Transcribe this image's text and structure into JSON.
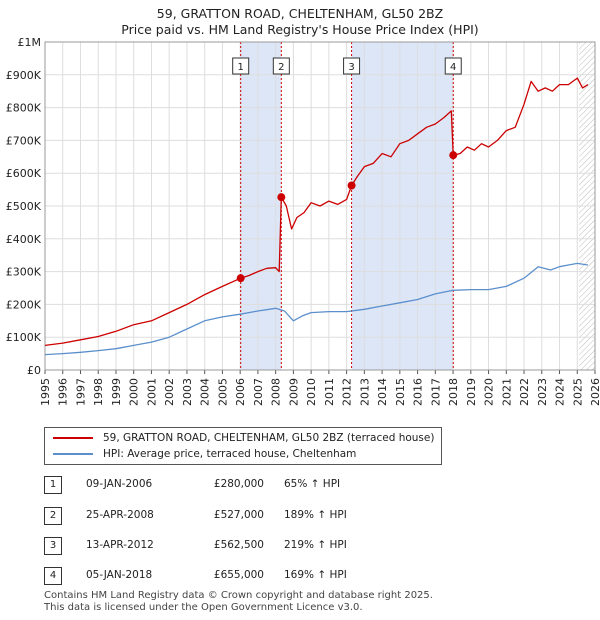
{
  "title": {
    "line1": "59, GRATTON ROAD, CHELTENHAM, GL50 2BZ",
    "line2": "Price paid vs. HM Land Registry's House Price Index (HPI)"
  },
  "colors": {
    "price_line": "#cc0000",
    "hpi_line": "#5b8fcc",
    "shade": "#dde6f7",
    "grid": "#dddddd",
    "vline": "#cc0000"
  },
  "chart_data": {
    "type": "line",
    "xlim": [
      1995,
      2026
    ],
    "ylim": [
      0,
      1000000
    ],
    "y_ticks": [
      {
        "value": 0,
        "label": "£0"
      },
      {
        "value": 100000,
        "label": "£100K"
      },
      {
        "value": 200000,
        "label": "£200K"
      },
      {
        "value": 300000,
        "label": "£300K"
      },
      {
        "value": 400000,
        "label": "£400K"
      },
      {
        "value": 500000,
        "label": "£500K"
      },
      {
        "value": 600000,
        "label": "£600K"
      },
      {
        "value": 700000,
        "label": "£700K"
      },
      {
        "value": 800000,
        "label": "£800K"
      },
      {
        "value": 900000,
        "label": "£900K"
      },
      {
        "value": 1000000,
        "label": "£1M"
      }
    ],
    "x_ticks": [
      "1995",
      "1996",
      "1997",
      "1998",
      "1999",
      "2000",
      "2001",
      "2002",
      "2003",
      "2004",
      "2005",
      "2006",
      "2007",
      "2008",
      "2009",
      "2010",
      "2011",
      "2012",
      "2013",
      "2014",
      "2015",
      "2016",
      "2017",
      "2018",
      "2019",
      "2020",
      "2021",
      "2022",
      "2023",
      "2024",
      "2025",
      "2026"
    ],
    "shaded_periods": [
      [
        2006.03,
        2008.32
      ],
      [
        2012.28,
        2018.01
      ]
    ],
    "hatched_from": 2025.1,
    "series": [
      {
        "name": "59, GRATTON ROAD, CHELTENHAM, GL50 2BZ (terraced house)",
        "x": [
          1995,
          1996,
          1997,
          1998,
          1999,
          2000,
          2001,
          2002,
          2003,
          2004,
          2005,
          2006.03,
          2006.5,
          2007,
          2007.5,
          2008,
          2008.2,
          2008.32,
          2008.6,
          2008.9,
          2009.2,
          2009.6,
          2010,
          2010.5,
          2011,
          2011.5,
          2012,
          2012.28,
          2012.6,
          2013,
          2013.5,
          2014,
          2014.5,
          2015,
          2015.5,
          2016,
          2016.5,
          2017,
          2017.5,
          2017.9,
          2018.01,
          2018.4,
          2018.8,
          2019.2,
          2019.6,
          2020,
          2020.5,
          2021,
          2021.5,
          2022,
          2022.4,
          2022.8,
          2023.2,
          2023.6,
          2024,
          2024.5,
          2025,
          2025.3,
          2025.6
        ],
        "values": [
          75000,
          82000,
          92000,
          102000,
          118000,
          138000,
          150000,
          175000,
          200000,
          230000,
          255000,
          280000,
          288000,
          300000,
          310000,
          312000,
          300000,
          527000,
          500000,
          430000,
          465000,
          480000,
          510000,
          500000,
          515000,
          505000,
          520000,
          562500,
          590000,
          620000,
          630000,
          660000,
          650000,
          690000,
          700000,
          720000,
          740000,
          750000,
          770000,
          790000,
          655000,
          660000,
          680000,
          670000,
          690000,
          680000,
          700000,
          730000,
          740000,
          810000,
          880000,
          850000,
          860000,
          850000,
          870000,
          870000,
          890000,
          860000,
          870000
        ]
      },
      {
        "name": "HPI: Average price, terraced house, Cheltenham",
        "x": [
          1995,
          1996,
          1997,
          1998,
          1999,
          2000,
          2001,
          2002,
          2003,
          2004,
          2005,
          2006,
          2007,
          2008,
          2008.5,
          2009,
          2009.5,
          2010,
          2011,
          2012,
          2013,
          2014,
          2015,
          2016,
          2017,
          2018,
          2019,
          2020,
          2021,
          2022,
          2022.8,
          2023.5,
          2024,
          2024.5,
          2025,
          2025.6
        ],
        "values": [
          47000,
          50000,
          54000,
          59000,
          65000,
          75000,
          85000,
          100000,
          125000,
          150000,
          162000,
          170000,
          180000,
          188000,
          180000,
          150000,
          165000,
          175000,
          178000,
          178000,
          185000,
          195000,
          205000,
          215000,
          232000,
          243000,
          245000,
          245000,
          255000,
          280000,
          315000,
          305000,
          315000,
          320000,
          325000,
          320000
        ]
      }
    ],
    "sales": [
      {
        "num": "1",
        "x": 2006.03,
        "price": 280000
      },
      {
        "num": "2",
        "x": 2008.32,
        "price": 527000
      },
      {
        "num": "3",
        "x": 2012.28,
        "price": 562500
      },
      {
        "num": "4",
        "x": 2018.01,
        "price": 655000
      }
    ]
  },
  "legend": {
    "price_label": "59, GRATTON ROAD, CHELTENHAM, GL50 2BZ (terraced house)",
    "hpi_label": "HPI: Average price, terraced house, Cheltenham"
  },
  "transactions": [
    {
      "num": "1",
      "date": "09-JAN-2006",
      "price": "£280,000",
      "hpi": "65% ↑ HPI"
    },
    {
      "num": "2",
      "date": "25-APR-2008",
      "price": "£527,000",
      "hpi": "189% ↑ HPI"
    },
    {
      "num": "3",
      "date": "13-APR-2012",
      "price": "£562,500",
      "hpi": "219% ↑ HPI"
    },
    {
      "num": "4",
      "date": "05-JAN-2018",
      "price": "£655,000",
      "hpi": "169% ↑ HPI"
    }
  ],
  "footer": {
    "line1": "Contains HM Land Registry data © Crown copyright and database right 2025.",
    "line2": "This data is licensed under the Open Government Licence v3.0."
  }
}
